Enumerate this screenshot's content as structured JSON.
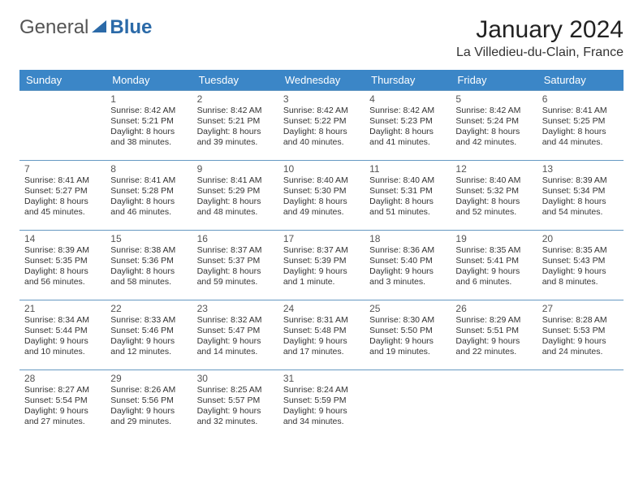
{
  "logo": {
    "text1": "General",
    "text2": "Blue",
    "mark_color": "#2b6aa8",
    "text1_color": "#555555",
    "text2_color": "#2b6aa8"
  },
  "title": {
    "month": "January 2024",
    "location": "La Villedieu-du-Clain, France"
  },
  "styles": {
    "header_bg": "#3b86c7",
    "header_fg": "#ffffff",
    "cell_border": "#6699c2",
    "daynum_color": "#555555",
    "text_color": "#333333",
    "header_fontsize": 13,
    "daynum_fontsize": 12,
    "info_fontsize": 10.5
  },
  "weekdays": [
    "Sunday",
    "Monday",
    "Tuesday",
    "Wednesday",
    "Thursday",
    "Friday",
    "Saturday"
  ],
  "weeks": [
    [
      null,
      {
        "n": "1",
        "sr": "8:42 AM",
        "ss": "5:21 PM",
        "dl": "8 hours and 38 minutes."
      },
      {
        "n": "2",
        "sr": "8:42 AM",
        "ss": "5:21 PM",
        "dl": "8 hours and 39 minutes."
      },
      {
        "n": "3",
        "sr": "8:42 AM",
        "ss": "5:22 PM",
        "dl": "8 hours and 40 minutes."
      },
      {
        "n": "4",
        "sr": "8:42 AM",
        "ss": "5:23 PM",
        "dl": "8 hours and 41 minutes."
      },
      {
        "n": "5",
        "sr": "8:42 AM",
        "ss": "5:24 PM",
        "dl": "8 hours and 42 minutes."
      },
      {
        "n": "6",
        "sr": "8:41 AM",
        "ss": "5:25 PM",
        "dl": "8 hours and 44 minutes."
      }
    ],
    [
      {
        "n": "7",
        "sr": "8:41 AM",
        "ss": "5:27 PM",
        "dl": "8 hours and 45 minutes."
      },
      {
        "n": "8",
        "sr": "8:41 AM",
        "ss": "5:28 PM",
        "dl": "8 hours and 46 minutes."
      },
      {
        "n": "9",
        "sr": "8:41 AM",
        "ss": "5:29 PM",
        "dl": "8 hours and 48 minutes."
      },
      {
        "n": "10",
        "sr": "8:40 AM",
        "ss": "5:30 PM",
        "dl": "8 hours and 49 minutes."
      },
      {
        "n": "11",
        "sr": "8:40 AM",
        "ss": "5:31 PM",
        "dl": "8 hours and 51 minutes."
      },
      {
        "n": "12",
        "sr": "8:40 AM",
        "ss": "5:32 PM",
        "dl": "8 hours and 52 minutes."
      },
      {
        "n": "13",
        "sr": "8:39 AM",
        "ss": "5:34 PM",
        "dl": "8 hours and 54 minutes."
      }
    ],
    [
      {
        "n": "14",
        "sr": "8:39 AM",
        "ss": "5:35 PM",
        "dl": "8 hours and 56 minutes."
      },
      {
        "n": "15",
        "sr": "8:38 AM",
        "ss": "5:36 PM",
        "dl": "8 hours and 58 minutes."
      },
      {
        "n": "16",
        "sr": "8:37 AM",
        "ss": "5:37 PM",
        "dl": "8 hours and 59 minutes."
      },
      {
        "n": "17",
        "sr": "8:37 AM",
        "ss": "5:39 PM",
        "dl": "9 hours and 1 minute."
      },
      {
        "n": "18",
        "sr": "8:36 AM",
        "ss": "5:40 PM",
        "dl": "9 hours and 3 minutes."
      },
      {
        "n": "19",
        "sr": "8:35 AM",
        "ss": "5:41 PM",
        "dl": "9 hours and 6 minutes."
      },
      {
        "n": "20",
        "sr": "8:35 AM",
        "ss": "5:43 PM",
        "dl": "9 hours and 8 minutes."
      }
    ],
    [
      {
        "n": "21",
        "sr": "8:34 AM",
        "ss": "5:44 PM",
        "dl": "9 hours and 10 minutes."
      },
      {
        "n": "22",
        "sr": "8:33 AM",
        "ss": "5:46 PM",
        "dl": "9 hours and 12 minutes."
      },
      {
        "n": "23",
        "sr": "8:32 AM",
        "ss": "5:47 PM",
        "dl": "9 hours and 14 minutes."
      },
      {
        "n": "24",
        "sr": "8:31 AM",
        "ss": "5:48 PM",
        "dl": "9 hours and 17 minutes."
      },
      {
        "n": "25",
        "sr": "8:30 AM",
        "ss": "5:50 PM",
        "dl": "9 hours and 19 minutes."
      },
      {
        "n": "26",
        "sr": "8:29 AM",
        "ss": "5:51 PM",
        "dl": "9 hours and 22 minutes."
      },
      {
        "n": "27",
        "sr": "8:28 AM",
        "ss": "5:53 PM",
        "dl": "9 hours and 24 minutes."
      }
    ],
    [
      {
        "n": "28",
        "sr": "8:27 AM",
        "ss": "5:54 PM",
        "dl": "9 hours and 27 minutes."
      },
      {
        "n": "29",
        "sr": "8:26 AM",
        "ss": "5:56 PM",
        "dl": "9 hours and 29 minutes."
      },
      {
        "n": "30",
        "sr": "8:25 AM",
        "ss": "5:57 PM",
        "dl": "9 hours and 32 minutes."
      },
      {
        "n": "31",
        "sr": "8:24 AM",
        "ss": "5:59 PM",
        "dl": "9 hours and 34 minutes."
      },
      null,
      null,
      null
    ]
  ],
  "labels": {
    "sunrise": "Sunrise:",
    "sunset": "Sunset:",
    "daylight": "Daylight:"
  }
}
